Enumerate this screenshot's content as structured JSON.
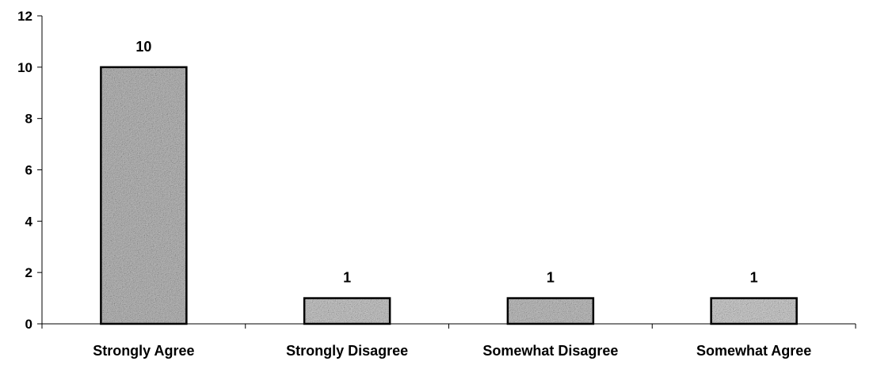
{
  "chart_data": {
    "type": "bar",
    "title": "",
    "xlabel": "",
    "ylabel": "",
    "categories": [
      "Strongly Agree",
      "Strongly Disagree",
      "Somewhat Disagree",
      "Somewhat Agree"
    ],
    "values": [
      10,
      1,
      1,
      1
    ],
    "data_labels": [
      "10",
      "1",
      "1",
      "1"
    ],
    "ylim": [
      0,
      12
    ],
    "y_ticks": [
      0,
      2,
      4,
      6,
      8,
      10,
      12
    ],
    "grid": false,
    "legend": "none",
    "bar_fill_colors": [
      "#bdbdbd",
      "#cccccc",
      "#c4c4c4",
      "#d2d2d2"
    ],
    "bar_edge_color": "#000000",
    "axis_color": "#000000"
  }
}
